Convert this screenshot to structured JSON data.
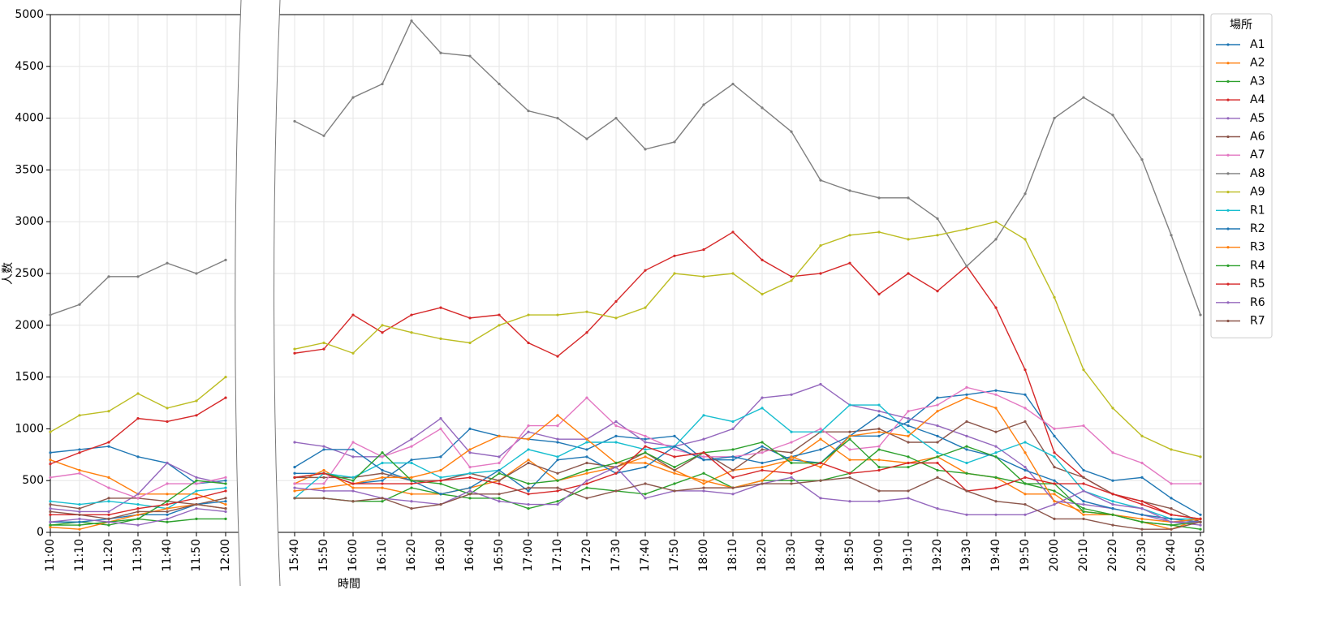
{
  "chart_data": {
    "type": "line",
    "x_label": "時間",
    "y_label": "人数",
    "legend_title": "場所",
    "categories": [
      "11:00",
      "11:10",
      "11:20",
      "11:30",
      "11:40",
      "11:50",
      "12:00",
      null,
      "15:40",
      "15:50",
      "16:00",
      "16:10",
      "16:20",
      "16:30",
      "16:40",
      "16:50",
      "17:00",
      "17:10",
      "17:20",
      "17:30",
      "17:40",
      "17:50",
      "18:00",
      "18:10",
      "18:20",
      "18:30",
      "18:40",
      "18:50",
      "19:00",
      "19:10",
      "19:20",
      "19:30",
      "19:40",
      "19:50",
      "20:00",
      "20:10",
      "20:20",
      "20:30",
      "20:40",
      "20:50"
    ],
    "ylim": [
      0,
      5000
    ],
    "yticks": [
      0,
      500,
      1000,
      1500,
      2000,
      2500,
      3000,
      3500,
      4000,
      4500,
      5000
    ],
    "grid": true,
    "legend": "outside-right",
    "series": [
      {
        "name": "A1",
        "color": "#1f77b4",
        "values": [
          770,
          800,
          830,
          730,
          670,
          470,
          500,
          null,
          570,
          570,
          470,
          500,
          700,
          730,
          1000,
          930,
          900,
          870,
          800,
          930,
          900,
          930,
          700,
          700,
          830,
          700,
          670,
          930,
          930,
          1070,
          1300,
          1330,
          1370,
          1330,
          930,
          600,
          500,
          530,
          330,
          170
        ]
      },
      {
        "name": "A2",
        "color": "#ff7f0e",
        "values": [
          700,
          600,
          530,
          370,
          370,
          370,
          270,
          null,
          470,
          600,
          430,
          430,
          370,
          370,
          430,
          500,
          700,
          500,
          570,
          630,
          730,
          600,
          470,
          600,
          630,
          700,
          900,
          700,
          700,
          670,
          730,
          570,
          530,
          370,
          370,
          170,
          170,
          100,
          30,
          130
        ]
      },
      {
        "name": "A3",
        "color": "#2ca02c",
        "values": [
          70,
          100,
          70,
          130,
          100,
          130,
          130,
          null,
          330,
          330,
          300,
          300,
          430,
          370,
          330,
          330,
          230,
          300,
          430,
          400,
          370,
          470,
          570,
          430,
          500,
          500,
          500,
          570,
          800,
          730,
          600,
          570,
          530,
          470,
          400,
          230,
          170,
          100,
          70,
          30
        ]
      },
      {
        "name": "A4",
        "color": "#d62728",
        "values": [
          660,
          770,
          870,
          1100,
          1070,
          1130,
          1300,
          null,
          1730,
          1770,
          2100,
          1930,
          2100,
          2170,
          2070,
          2100,
          1830,
          1700,
          1930,
          2230,
          2530,
          2670,
          2730,
          2900,
          2630,
          2470,
          2500,
          2600,
          2300,
          2500,
          2330,
          2570,
          2170,
          1570,
          770,
          530,
          370,
          270,
          170,
          130
        ]
      },
      {
        "name": "A5",
        "color": "#9467bd",
        "values": [
          230,
          200,
          200,
          370,
          670,
          530,
          470,
          null,
          870,
          830,
          730,
          730,
          900,
          1100,
          770,
          730,
          970,
          900,
          900,
          1070,
          870,
          830,
          900,
          1000,
          1300,
          1330,
          1430,
          1230,
          1170,
          1100,
          1030,
          930,
          830,
          630,
          300,
          270,
          230,
          170,
          100,
          70
        ]
      },
      {
        "name": "A6",
        "color": "#8c564b",
        "values": [
          270,
          230,
          330,
          330,
          300,
          270,
          330,
          null,
          530,
          530,
          530,
          570,
          500,
          500,
          570,
          500,
          670,
          570,
          670,
          630,
          770,
          600,
          770,
          600,
          800,
          770,
          970,
          970,
          1000,
          870,
          870,
          1070,
          970,
          1070,
          630,
          530,
          370,
          300,
          230,
          100
        ]
      },
      {
        "name": "A7",
        "color": "#e377c2",
        "values": [
          530,
          570,
          430,
          330,
          470,
          470,
          530,
          null,
          470,
          470,
          870,
          730,
          830,
          1000,
          630,
          670,
          1030,
          1030,
          1300,
          1030,
          930,
          800,
          730,
          730,
          770,
          870,
          1000,
          800,
          830,
          1170,
          1230,
          1400,
          1330,
          1200,
          1000,
          1030,
          770,
          670,
          470,
          470
        ]
      },
      {
        "name": "A8",
        "color": "#7f7f7f",
        "values": [
          2100,
          2200,
          2470,
          2470,
          2600,
          2500,
          2630,
          null,
          3970,
          3830,
          4200,
          4330,
          4940,
          4630,
          4600,
          4330,
          4070,
          4000,
          3800,
          4000,
          3700,
          3770,
          4130,
          4330,
          4100,
          3870,
          3400,
          3300,
          3230,
          3230,
          3030,
          2570,
          2830,
          3270,
          4000,
          4200,
          4030,
          3600,
          2870,
          2100
        ]
      },
      {
        "name": "A9",
        "color": "#bcbd22",
        "values": [
          970,
          1130,
          1170,
          1340,
          1200,
          1270,
          1500,
          null,
          1770,
          1830,
          1730,
          2000,
          1930,
          1870,
          1830,
          2000,
          2100,
          2100,
          2130,
          2070,
          2170,
          2500,
          2470,
          2500,
          2300,
          2430,
          2770,
          2870,
          2900,
          2830,
          2870,
          2930,
          3000,
          2830,
          2270,
          1570,
          1200,
          930,
          800,
          730
        ]
      },
      {
        "name": "R1",
        "color": "#17becf",
        "values": [
          300,
          270,
          300,
          270,
          230,
          400,
          430,
          null,
          330,
          570,
          530,
          670,
          670,
          530,
          570,
          600,
          800,
          730,
          870,
          870,
          800,
          830,
          1130,
          1070,
          1200,
          970,
          970,
          1230,
          1230,
          970,
          770,
          670,
          770,
          870,
          730,
          400,
          300,
          230,
          130,
          130
        ]
      },
      {
        "name": "R2",
        "color": "#1f77b4",
        "values": [
          100,
          100,
          130,
          170,
          170,
          270,
          300,
          null,
          630,
          800,
          800,
          600,
          500,
          370,
          430,
          600,
          400,
          700,
          730,
          570,
          630,
          830,
          700,
          730,
          670,
          730,
          800,
          930,
          1130,
          1030,
          930,
          800,
          730,
          600,
          500,
          300,
          230,
          170,
          130,
          100
        ]
      },
      {
        "name": "R3",
        "color": "#ff7f0e",
        "values": [
          50,
          30,
          100,
          170,
          230,
          270,
          230,
          null,
          400,
          430,
          470,
          530,
          530,
          600,
          800,
          930,
          900,
          1130,
          900,
          670,
          670,
          570,
          500,
          430,
          500,
          730,
          630,
          930,
          970,
          930,
          1170,
          1300,
          1200,
          770,
          300,
          200,
          170,
          130,
          100,
          130
        ]
      },
      {
        "name": "R4",
        "color": "#2ca02c",
        "values": [
          70,
          70,
          100,
          130,
          300,
          500,
          470,
          null,
          530,
          570,
          500,
          770,
          500,
          470,
          370,
          570,
          470,
          500,
          600,
          670,
          770,
          630,
          770,
          800,
          870,
          670,
          670,
          900,
          630,
          630,
          730,
          830,
          730,
          470,
          470,
          200,
          170,
          100,
          70,
          100
        ]
      },
      {
        "name": "R5",
        "color": "#d62728",
        "values": [
          170,
          170,
          170,
          230,
          270,
          330,
          400,
          null,
          530,
          570,
          470,
          470,
          470,
          500,
          530,
          470,
          370,
          400,
          470,
          570,
          830,
          730,
          770,
          530,
          600,
          570,
          670,
          570,
          600,
          670,
          670,
          400,
          430,
          530,
          470,
          470,
          370,
          300,
          170,
          130
        ]
      },
      {
        "name": "R6",
        "color": "#9467bd",
        "values": [
          100,
          130,
          100,
          70,
          130,
          230,
          200,
          null,
          430,
          400,
          400,
          330,
          300,
          270,
          400,
          300,
          270,
          270,
          500,
          630,
          330,
          400,
          400,
          370,
          470,
          530,
          330,
          300,
          300,
          330,
          230,
          170,
          170,
          170,
          270,
          400,
          270,
          230,
          100,
          100
        ]
      },
      {
        "name": "R7",
        "color": "#8c564b",
        "values": [
          200,
          170,
          130,
          200,
          200,
          270,
          230,
          null,
          330,
          330,
          300,
          330,
          230,
          270,
          370,
          370,
          430,
          430,
          330,
          400,
          470,
          400,
          430,
          430,
          470,
          470,
          500,
          530,
          400,
          400,
          530,
          400,
          300,
          270,
          130,
          130,
          70,
          30,
          30,
          100
        ]
      }
    ]
  }
}
